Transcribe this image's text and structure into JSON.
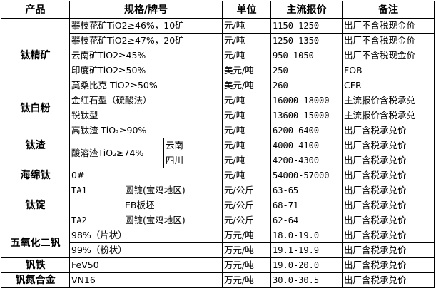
{
  "header": {
    "product": "产品",
    "spec": "规格/牌号",
    "unit": "单位",
    "price": "主流报价",
    "note": "备注"
  },
  "products": [
    {
      "name": "钛精矿",
      "items": [
        {
          "spec": "攀枝花矿TiO2≥46%，10矿",
          "unit": "元/吨",
          "price": "1150-1250",
          "note": "出厂不含税现金价"
        },
        {
          "spec": "攀枝花矿TiO2≥47%，20矿",
          "unit": "元/吨",
          "price": "1250-1350",
          "note": "出厂不含税现金价"
        },
        {
          "spec": "云南矿TiO2≥45%",
          "unit": "元/吨",
          "price": "950-1050",
          "note": "出厂不含税现金价"
        },
        {
          "spec": "印度矿TiO2≥50%",
          "unit": "美元/吨",
          "price": "250",
          "note": "FOB"
        },
        {
          "spec": "莫桑比克 TiO2≥50%",
          "unit": "美元/吨",
          "price": "260",
          "note": "CFR"
        }
      ]
    },
    {
      "name": "钛白粉",
      "items": [
        {
          "spec": "金红石型（硫酸法）",
          "unit": "元/吨",
          "price": "16000-18000",
          "note": "主流报价含税承兑"
        },
        {
          "spec": "锐钛型",
          "unit": "元/吨",
          "price": "13600-15000",
          "note": "主流报价含税承兑"
        }
      ]
    },
    {
      "name": "钛渣",
      "items": [
        {
          "spec": "高钛渣 TiO₂≥90%",
          "unit": "元/吨",
          "price": "6200-6400",
          "note": "出厂含税承兑价"
        },
        {
          "spec": "酸溶渣TiO₂≥74%",
          "region": "云南",
          "unit": "元/吨",
          "price": "4000-4100",
          "note": "出厂含税承兑价"
        },
        {
          "region": "四川",
          "unit": "元/吨",
          "price": "4200-4300",
          "note": "出厂含税承兑价"
        }
      ]
    },
    {
      "name": "海绵钛",
      "items": [
        {
          "spec": "0#",
          "unit": "元/吨",
          "price": "54000-57000",
          "note": "出厂含税承兑价"
        }
      ]
    },
    {
      "name": "钛锭",
      "items": [
        {
          "grade": "TA1",
          "form": "圆锭(宝鸡地区)",
          "unit": "元/公斤",
          "price": "63-65",
          "note": "出厂含税承兑价"
        },
        {
          "form": "EB板坯",
          "unit": "元/公斤",
          "price": "68-71",
          "note": "出厂含税承兑价"
        },
        {
          "grade": "TA2",
          "form": "圆锭(宝鸡地区)",
          "unit": "元/公斤",
          "price": "62-64",
          "note": "出厂含税承兑价"
        }
      ]
    },
    {
      "name": "五氧化二钒",
      "items": [
        {
          "spec": "98%（片状）",
          "unit": "万元/吨",
          "price": "18.0-19.0",
          "note": "出厂含税承兑价"
        },
        {
          "spec": "99%（粉状）",
          "unit": "万元/吨",
          "price": "19.1-19.9",
          "note": "出厂含税承兑价"
        }
      ]
    },
    {
      "name": "钒铁",
      "items": [
        {
          "spec": "FeV50",
          "unit": "万元/吨",
          "price": "19.0-20.0",
          "note": "出厂含税承兑价"
        }
      ]
    },
    {
      "name": "钒氮合金",
      "items": [
        {
          "spec": "VN16",
          "unit": "万元/吨",
          "price": "30.0-30.5",
          "note": "出厂含税承兑价"
        }
      ]
    }
  ]
}
